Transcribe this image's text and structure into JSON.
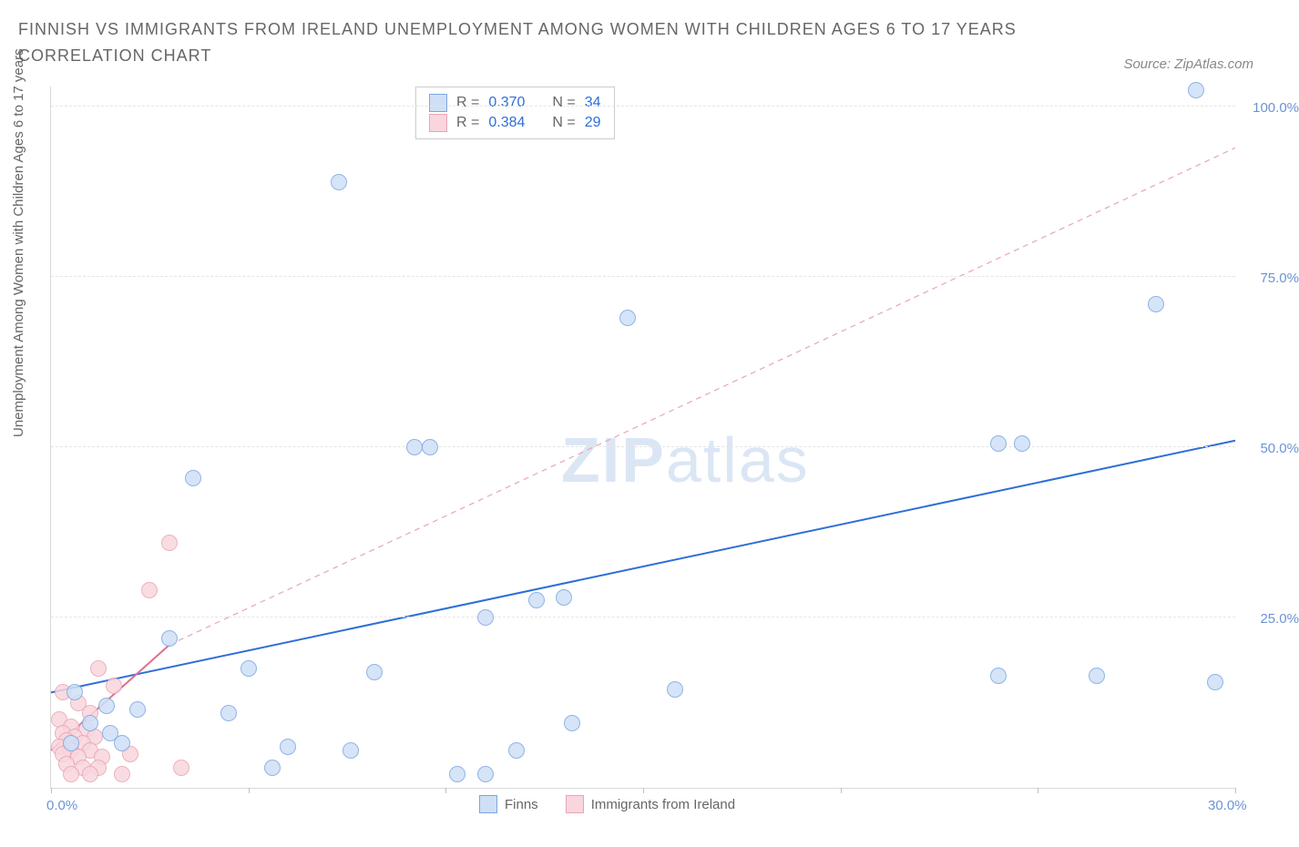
{
  "title_text": "FINNISH VS IMMIGRANTS FROM IRELAND UNEMPLOYMENT AMONG WOMEN WITH CHILDREN AGES 6 TO 17 YEARS CORRELATION CHART",
  "source_text": "Source: ZipAtlas.com",
  "ylabel": "Unemployment Among Women with Children Ages 6 to 17 years",
  "watermark_bold": "ZIP",
  "watermark_light": "atlas",
  "chart": {
    "type": "scatter",
    "background_color": "#ffffff",
    "grid_color": "#e5e5e5",
    "axis_color": "#d9d9d9",
    "tick_label_color": "#6b93d6",
    "label_color": "#666666",
    "title_color": "#666666",
    "title_fontsize": 18,
    "label_fontsize": 15,
    "tick_fontsize": 15,
    "xlim": [
      0,
      30
    ],
    "ylim": [
      0,
      103
    ],
    "ytick_values": [
      25,
      50,
      75,
      100
    ],
    "ytick_labels": [
      "25.0%",
      "50.0%",
      "75.0%",
      "100.0%"
    ],
    "xtick_values": [
      0,
      5,
      10,
      15,
      20,
      25,
      30
    ],
    "xtick_label_left": "0.0%",
    "xtick_label_right": "30.0%",
    "marker_radius": 9,
    "marker_border_width": 1.5,
    "series": {
      "finns": {
        "label": "Finns",
        "fill": "#cfe0f6",
        "stroke": "#7ca7e0",
        "fill_opacity": 0.85,
        "r_value": "0.370",
        "n_value": "34",
        "regression": {
          "y_at_x0": 14.0,
          "y_at_x30": 51.0,
          "stroke": "#2e6fd6",
          "stroke_width": 2.0,
          "dash": "none"
        },
        "points": [
          {
            "x": 29.0,
            "y": 102.5
          },
          {
            "x": 7.3,
            "y": 89.0
          },
          {
            "x": 28.0,
            "y": 71.0
          },
          {
            "x": 14.6,
            "y": 69.0
          },
          {
            "x": 9.2,
            "y": 50.0
          },
          {
            "x": 9.6,
            "y": 50.0
          },
          {
            "x": 24.0,
            "y": 50.5
          },
          {
            "x": 24.6,
            "y": 50.5
          },
          {
            "x": 3.6,
            "y": 45.5
          },
          {
            "x": 12.3,
            "y": 27.5
          },
          {
            "x": 13.0,
            "y": 28.0
          },
          {
            "x": 11.0,
            "y": 25.0
          },
          {
            "x": 3.0,
            "y": 22.0
          },
          {
            "x": 5.0,
            "y": 17.5
          },
          {
            "x": 8.2,
            "y": 17.0
          },
          {
            "x": 24.0,
            "y": 16.5
          },
          {
            "x": 26.5,
            "y": 16.5
          },
          {
            "x": 29.5,
            "y": 15.5
          },
          {
            "x": 15.8,
            "y": 14.5
          },
          {
            "x": 0.6,
            "y": 14.0
          },
          {
            "x": 1.4,
            "y": 12.0
          },
          {
            "x": 2.2,
            "y": 11.5
          },
          {
            "x": 4.5,
            "y": 11.0
          },
          {
            "x": 1.0,
            "y": 9.5
          },
          {
            "x": 13.2,
            "y": 9.5
          },
          {
            "x": 1.5,
            "y": 8.0
          },
          {
            "x": 6.0,
            "y": 6.0
          },
          {
            "x": 7.6,
            "y": 5.5
          },
          {
            "x": 11.8,
            "y": 5.5
          },
          {
            "x": 5.6,
            "y": 3.0
          },
          {
            "x": 10.3,
            "y": 2.0
          },
          {
            "x": 11.0,
            "y": 2.0
          },
          {
            "x": 0.5,
            "y": 6.5
          },
          {
            "x": 1.8,
            "y": 6.5
          }
        ]
      },
      "ireland": {
        "label": "Immigrants from Ireland",
        "fill": "#f9d6de",
        "stroke": "#e8a5b5",
        "fill_opacity": 0.85,
        "r_value": "0.384",
        "n_value": "29",
        "regression_solid": {
          "x0": 0.0,
          "y0": 5.5,
          "x1": 3.0,
          "y1": 21.0,
          "stroke": "#e16f90",
          "stroke_width": 2.0
        },
        "regression_dashed": {
          "x0": 3.0,
          "y0": 21.0,
          "x1": 30.0,
          "y1": 94.0,
          "stroke": "#e8a5b5",
          "stroke_width": 1.2,
          "dash": "6,5"
        },
        "points": [
          {
            "x": 3.0,
            "y": 36.0
          },
          {
            "x": 2.5,
            "y": 29.0
          },
          {
            "x": 1.2,
            "y": 17.5
          },
          {
            "x": 1.6,
            "y": 15.0
          },
          {
            "x": 0.3,
            "y": 14.0
          },
          {
            "x": 0.7,
            "y": 12.5
          },
          {
            "x": 1.0,
            "y": 11.0
          },
          {
            "x": 0.2,
            "y": 10.0
          },
          {
            "x": 0.5,
            "y": 9.0
          },
          {
            "x": 0.9,
            "y": 8.5
          },
          {
            "x": 0.3,
            "y": 8.0
          },
          {
            "x": 0.6,
            "y": 7.5
          },
          {
            "x": 1.1,
            "y": 7.5
          },
          {
            "x": 0.4,
            "y": 7.0
          },
          {
            "x": 0.8,
            "y": 6.5
          },
          {
            "x": 0.2,
            "y": 6.0
          },
          {
            "x": 0.5,
            "y": 5.5
          },
          {
            "x": 1.0,
            "y": 5.5
          },
          {
            "x": 0.3,
            "y": 5.0
          },
          {
            "x": 0.7,
            "y": 4.5
          },
          {
            "x": 1.3,
            "y": 4.5
          },
          {
            "x": 2.0,
            "y": 5.0
          },
          {
            "x": 0.4,
            "y": 3.5
          },
          {
            "x": 0.8,
            "y": 3.0
          },
          {
            "x": 1.2,
            "y": 3.0
          },
          {
            "x": 3.3,
            "y": 3.0
          },
          {
            "x": 0.5,
            "y": 2.0
          },
          {
            "x": 1.0,
            "y": 2.0
          },
          {
            "x": 1.8,
            "y": 2.0
          }
        ]
      }
    },
    "legend_stats": {
      "r_label": "R =",
      "n_label": "N ="
    },
    "bottom_legend": {
      "finns_label": "Finns",
      "ireland_label": "Immigrants from Ireland"
    }
  }
}
